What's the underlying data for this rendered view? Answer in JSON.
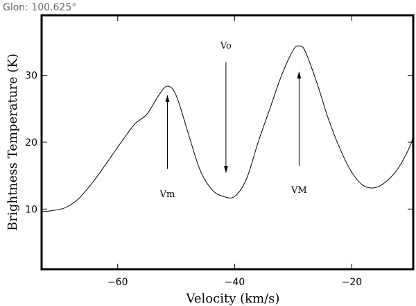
{
  "header": {
    "glon_label": "Glon: 100.625°"
  },
  "chart_data": {
    "type": "line",
    "xlabel": "Velocity (km/s)",
    "ylabel": "Brightness Temperature (K)",
    "xlim": [
      -73,
      -9.5
    ],
    "ylim": [
      1,
      39
    ],
    "x_ticks": [
      -60,
      -40,
      -20
    ],
    "y_ticks": [
      10,
      20,
      30
    ],
    "grid": false,
    "line_color": "#000000",
    "series": [
      {
        "x": [
          -73,
          -71,
          -69,
          -67,
          -65,
          -63,
          -61,
          -59,
          -57,
          -55,
          -53,
          -51.5,
          -50,
          -48,
          -46,
          -44,
          -42,
          -40,
          -38,
          -36,
          -34,
          -32,
          -30,
          -29,
          -28,
          -26,
          -24,
          -22,
          -20,
          -18,
          -16,
          -14,
          -12,
          -10,
          -9.5
        ],
        "y": [
          9.6,
          9.8,
          10.2,
          11.3,
          13.2,
          15.5,
          18,
          20.5,
          22.8,
          24.2,
          27,
          28.4,
          27,
          21.5,
          16,
          13,
          11.9,
          11.9,
          14.5,
          20,
          25,
          30,
          33.8,
          34.4,
          33.7,
          29,
          23.5,
          19,
          15.5,
          13.5,
          13.2,
          14.2,
          16.2,
          19.5,
          21.2
        ]
      }
    ],
    "annotations": [
      {
        "label": "Vo",
        "x": -41.5,
        "text_y": 34,
        "arrow_from": 32,
        "arrow_to": 15.5,
        "direction": "down"
      },
      {
        "label": "Vm",
        "x": -51.5,
        "text_y": 11.8,
        "arrow_from": 16,
        "arrow_to": 27,
        "direction": "up"
      },
      {
        "label": "VM",
        "x": -29,
        "text_y": 12.4,
        "arrow_from": 16.5,
        "arrow_to": 30.5,
        "direction": "up"
      }
    ]
  }
}
